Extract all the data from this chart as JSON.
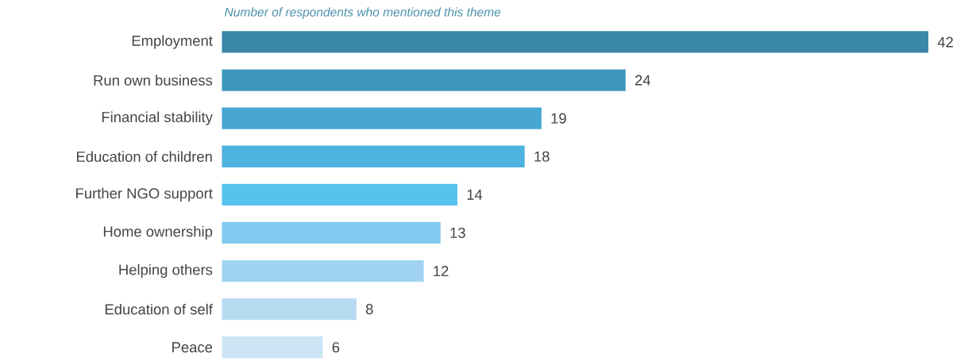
{
  "chart_data": {
    "type": "bar",
    "orientation": "horizontal",
    "title": "Number of respondents who mentioned this theme",
    "categories": [
      "Employment",
      "Run own business",
      "Financial stability",
      "Education of children",
      "Further NGO support",
      "Home ownership",
      "Helping others",
      "Education of self",
      "Peace"
    ],
    "values": [
      42,
      24,
      19,
      18,
      14,
      13,
      12,
      8,
      6
    ],
    "colors": [
      "#3a87a8",
      "#4097be",
      "#47a7d2",
      "#4eb3e0",
      "#56c2ed",
      "#80caf0",
      "#a0d4f1",
      "#b7dcf2",
      "#cce5f4"
    ],
    "data_labels": true
  }
}
